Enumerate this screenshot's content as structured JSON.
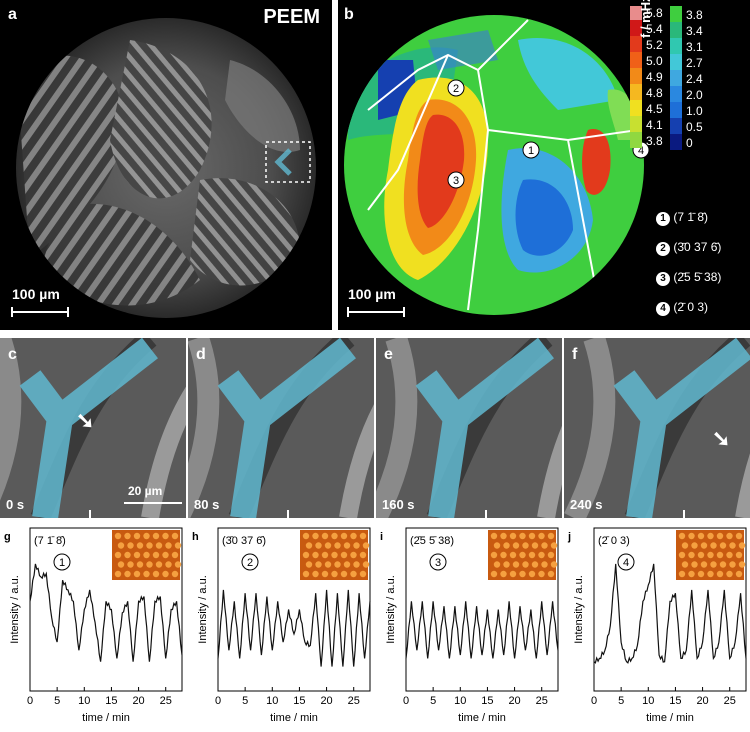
{
  "panel_a": {
    "label": "a",
    "title": "PEEM",
    "scalebar": "100 µm"
  },
  "panel_b": {
    "label": "b",
    "scalebar": "100 µm",
    "colorbar_label": "f / mHz",
    "colorbar_left_ticks": [
      "5.8",
      "5.4",
      "5.2",
      "5.0",
      "4.9",
      "4.8",
      "4.5",
      "4.1",
      "3.8"
    ],
    "colorbar_right_ticks": [
      "3.8",
      "3.4",
      "3.1",
      "2.7",
      "2.4",
      "2.0",
      "1.0",
      "0.5",
      "0"
    ],
    "markers": [
      "2",
      "3",
      "1",
      "4"
    ],
    "facets": [
      {
        "num": "1",
        "miller": "(7 1̄ 8̄)"
      },
      {
        "num": "2",
        "miller": "(3̄0 37 6̄)"
      },
      {
        "num": "3",
        "miller": "(2̄5 5̄ 38)"
      },
      {
        "num": "4",
        "miller": "(2̄ 0 3)"
      }
    ]
  },
  "frames": [
    {
      "label": "c",
      "time": "0 s",
      "scalebar": "20 µm"
    },
    {
      "label": "d",
      "time": "80 s"
    },
    {
      "label": "e",
      "time": "160 s"
    },
    {
      "label": "f",
      "time": "240 s"
    }
  ],
  "plots": {
    "ylabel": "Intensity / a.u.",
    "xlabel": "time / min",
    "xticks": [
      "0",
      "5",
      "10",
      "15",
      "20",
      "25"
    ],
    "panels": [
      {
        "label": "g",
        "miller": "(7 1̄ 8̄)",
        "facet": "1"
      },
      {
        "label": "h",
        "miller": "(3̄0 37 6̄)",
        "facet": "2"
      },
      {
        "label": "i",
        "miller": "(2̄5 5̄ 38)",
        "facet": "3"
      },
      {
        "label": "j",
        "miller": "(2̄ 0 3)",
        "facet": "4"
      }
    ]
  },
  "chart_data": [
    {
      "type": "line",
      "panel": "g",
      "xlabel": "time / min",
      "ylabel": "Intensity / a.u.",
      "xlim": [
        0,
        28
      ],
      "series": [
        {
          "x": [
            0,
            1,
            2,
            3,
            4,
            5,
            6,
            7,
            8,
            9,
            10,
            11,
            12,
            13,
            14,
            15,
            16,
            17,
            18,
            19,
            20,
            21,
            22,
            23,
            24,
            25,
            26,
            27,
            28
          ],
          "values": [
            0.55,
            0.78,
            0.7,
            0.72,
            0.45,
            0.3,
            0.68,
            0.62,
            0.55,
            0.25,
            0.5,
            0.62,
            0.42,
            0.18,
            0.55,
            0.5,
            0.2,
            0.48,
            0.55,
            0.18,
            0.55,
            0.58,
            0.18,
            0.55,
            0.58,
            0.2,
            0.5,
            0.55,
            0.22
          ]
        }
      ]
    },
    {
      "type": "line",
      "panel": "h",
      "xlabel": "time / min",
      "ylabel": "Intensity / a.u.",
      "xlim": [
        0,
        28
      ],
      "series": [
        {
          "x": [
            0,
            1,
            2,
            3,
            4,
            5,
            6,
            7,
            8,
            9,
            10,
            11,
            12,
            13,
            14,
            15,
            16,
            17,
            18,
            19,
            20,
            21,
            22,
            23,
            24,
            25,
            26,
            27,
            28
          ],
          "values": [
            0.2,
            0.62,
            0.25,
            0.55,
            0.2,
            0.6,
            0.25,
            0.6,
            0.22,
            0.58,
            0.25,
            0.55,
            0.3,
            0.5,
            0.35,
            0.5,
            0.3,
            0.28,
            0.6,
            0.15,
            0.62,
            0.15,
            0.6,
            0.15,
            0.62,
            0.15,
            0.6,
            0.2,
            0.55
          ]
        }
      ]
    },
    {
      "type": "line",
      "panel": "i",
      "xlabel": "time / min",
      "ylabel": "Intensity / a.u.",
      "xlim": [
        0,
        28
      ],
      "series": [
        {
          "x": [
            0,
            1,
            2,
            3,
            4,
            5,
            6,
            7,
            8,
            9,
            10,
            11,
            12,
            13,
            14,
            15,
            16,
            17,
            18,
            19,
            20,
            21,
            22,
            23,
            24,
            25,
            26,
            27,
            28
          ],
          "values": [
            0.2,
            0.55,
            0.25,
            0.55,
            0.2,
            0.55,
            0.25,
            0.52,
            0.2,
            0.52,
            0.22,
            0.55,
            0.2,
            0.52,
            0.22,
            0.5,
            0.2,
            0.5,
            0.22,
            0.55,
            0.2,
            0.52,
            0.25,
            0.5,
            0.2,
            0.55,
            0.22,
            0.55,
            0.25
          ]
        }
      ]
    },
    {
      "type": "line",
      "panel": "j",
      "xlabel": "time / min",
      "ylabel": "Intensity / a.u.",
      "xlim": [
        0,
        28
      ],
      "series": [
        {
          "x": [
            0,
            1,
            2,
            3,
            4,
            5,
            6,
            7,
            8,
            9,
            10,
            11,
            12,
            13,
            14,
            15,
            16,
            17,
            18,
            19,
            20,
            21,
            22,
            23,
            24,
            25,
            26,
            27,
            28
          ],
          "values": [
            0.18,
            0.2,
            0.25,
            0.4,
            0.78,
            0.3,
            0.18,
            0.2,
            0.28,
            0.55,
            0.65,
            0.78,
            0.22,
            0.18,
            0.55,
            0.6,
            0.2,
            0.25,
            0.62,
            0.2,
            0.3,
            0.62,
            0.2,
            0.3,
            0.62,
            0.2,
            0.3,
            0.6,
            0.2
          ]
        }
      ]
    }
  ]
}
